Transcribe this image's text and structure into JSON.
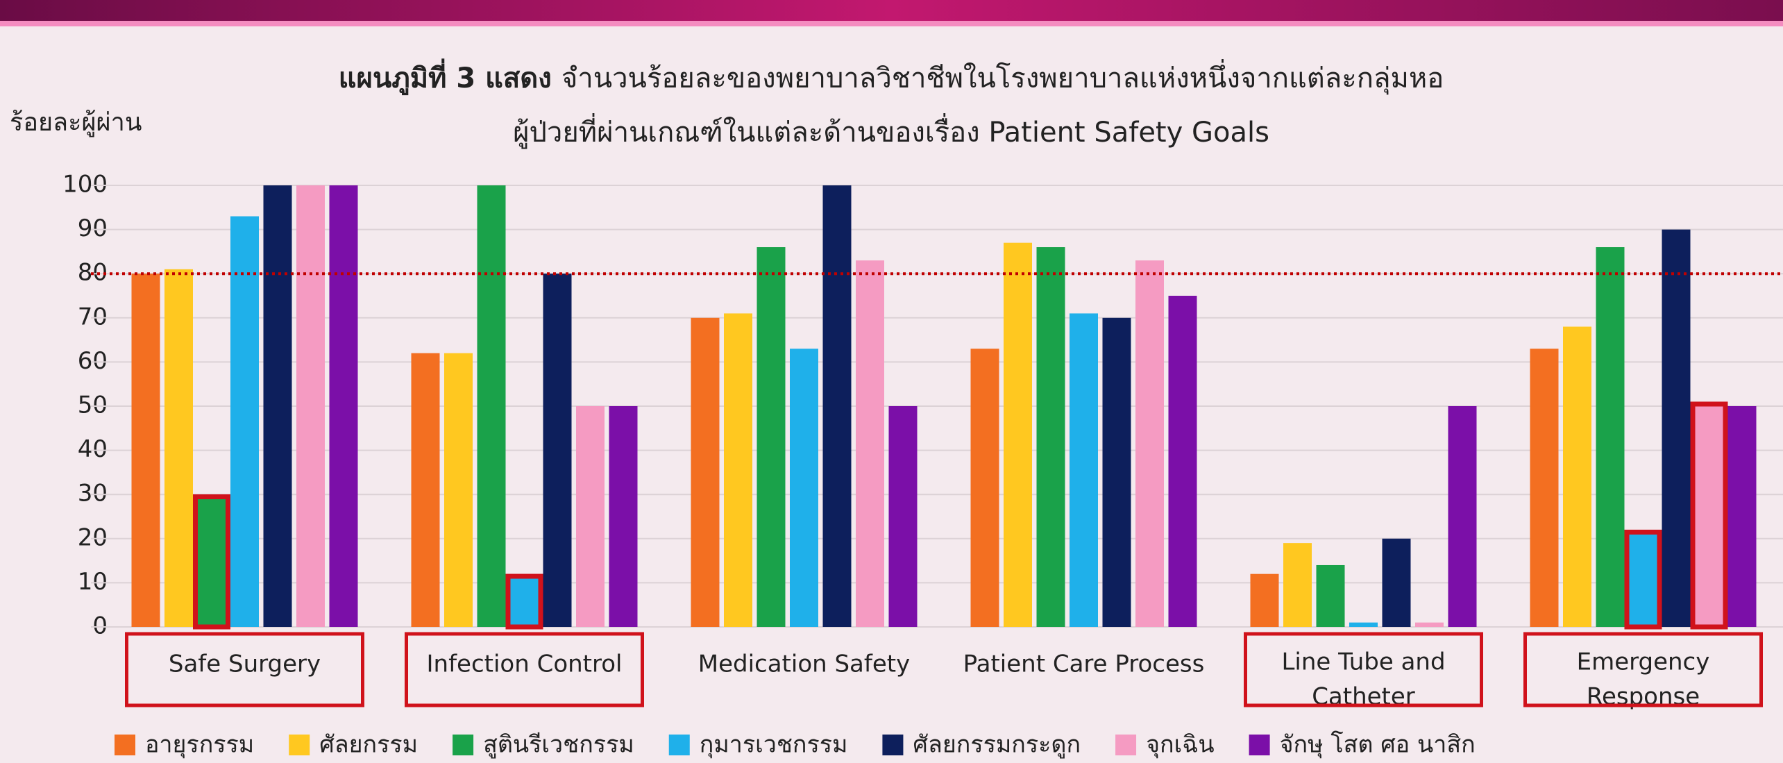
{
  "chart_data": {
    "type": "bar",
    "title_bold": "แผนภูมิที่ 3 แสดง",
    "title": [
      "จำนวนร้อยละของพยาบาลวิชาชีพในโรงพยาบาลแห่งหนึ่งจากแต่ละกลุ่มหอ",
      "ผู้ป่วยที่ผ่านเกณฑ์ในแต่ละด้านของเรื่อง Patient Safety Goals"
    ],
    "y_label": "ร้อยละผู้ผ่าน",
    "categories": [
      [
        "Safe Surgery"
      ],
      [
        "Infection Control"
      ],
      [
        "Medication Safety"
      ],
      [
        "Patient Care Process"
      ],
      [
        "Line Tube and",
        "Catheter"
      ],
      [
        "Emergency",
        "Response"
      ]
    ],
    "series": [
      {
        "name": "อายุรกรรม",
        "color": "#f36f21",
        "values": [
          80,
          62,
          70,
          63,
          12,
          63
        ]
      },
      {
        "name": "ศัลยกรรม",
        "color": "#ffc820",
        "values": [
          81,
          62,
          71,
          87,
          19,
          68
        ]
      },
      {
        "name": "สูตินรีเวชกรรม",
        "color": "#1aa24a",
        "values": [
          29,
          100,
          86,
          86,
          14,
          86
        ]
      },
      {
        "name": "กุมารเวชกรรม",
        "color": "#1fb0ea",
        "values": [
          93,
          11,
          63,
          71,
          1,
          21
        ]
      },
      {
        "name": "ศัลยกรรมกระดูก",
        "color": "#0d1f5c",
        "values": [
          100,
          80,
          100,
          70,
          20,
          90
        ]
      },
      {
        "name": "จุกเฉิน",
        "color": "#f59bc2",
        "values": [
          100,
          50,
          83,
          83,
          1,
          50
        ]
      },
      {
        "name": "จักษุ โสต ศอ นาสิก",
        "color": "#7b0fa8",
        "values": [
          100,
          50,
          50,
          75,
          50,
          50
        ]
      }
    ],
    "ylim": [
      0,
      100
    ],
    "yticks": [
      0,
      10,
      20,
      30,
      40,
      50,
      60,
      70,
      80,
      90,
      100
    ],
    "grid": true,
    "reference_line": {
      "value": 80,
      "color": "#c00000"
    },
    "highlight_color": "#d0121b",
    "highlight_categories": [
      0,
      1,
      4,
      5
    ],
    "highlight_bars": [
      [
        0,
        2
      ],
      [
        1,
        3
      ],
      [
        5,
        3
      ],
      [
        5,
        5
      ]
    ],
    "legend": "bottom"
  }
}
